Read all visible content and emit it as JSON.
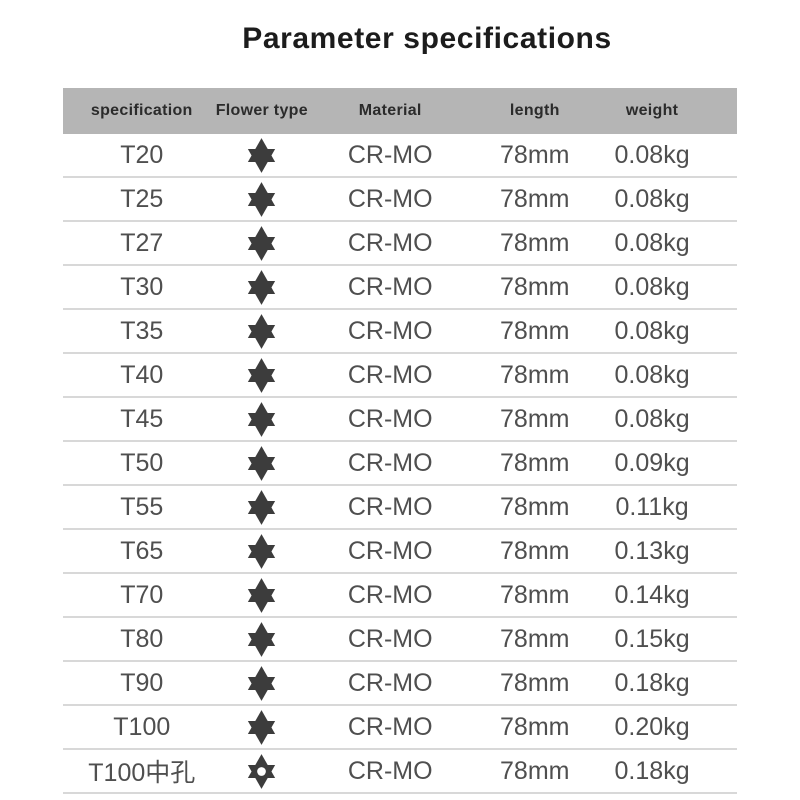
{
  "title": "Parameter specifications",
  "table": {
    "headers": [
      "specification",
      "Flower type",
      "Material",
      "length",
      "weight"
    ],
    "rows": [
      {
        "specification": "T20",
        "flower_type": "six-point-star",
        "material": "CR-MO",
        "length": "78mm",
        "weight": "0.08kg"
      },
      {
        "specification": "T25",
        "flower_type": "six-point-star",
        "material": "CR-MO",
        "length": "78mm",
        "weight": "0.08kg"
      },
      {
        "specification": "T27",
        "flower_type": "six-point-star",
        "material": "CR-MO",
        "length": "78mm",
        "weight": "0.08kg"
      },
      {
        "specification": "T30",
        "flower_type": "six-point-star",
        "material": "CR-MO",
        "length": "78mm",
        "weight": "0.08kg"
      },
      {
        "specification": "T35",
        "flower_type": "six-point-star",
        "material": "CR-MO",
        "length": "78mm",
        "weight": "0.08kg"
      },
      {
        "specification": "T40",
        "flower_type": "six-point-star",
        "material": "CR-MO",
        "length": "78mm",
        "weight": "0.08kg"
      },
      {
        "specification": "T45",
        "flower_type": "six-point-star",
        "material": "CR-MO",
        "length": "78mm",
        "weight": "0.08kg"
      },
      {
        "specification": "T50",
        "flower_type": "six-point-star",
        "material": "CR-MO",
        "length": "78mm",
        "weight": "0.09kg"
      },
      {
        "specification": "T55",
        "flower_type": "six-point-star",
        "material": "CR-MO",
        "length": "78mm",
        "weight": "0.11kg"
      },
      {
        "specification": "T65",
        "flower_type": "six-point-star",
        "material": "CR-MO",
        "length": "78mm",
        "weight": "0.13kg"
      },
      {
        "specification": "T70",
        "flower_type": "six-point-star",
        "material": "CR-MO",
        "length": "78mm",
        "weight": "0.14kg"
      },
      {
        "specification": "T80",
        "flower_type": "six-point-star",
        "material": "CR-MO",
        "length": "78mm",
        "weight": "0.15kg"
      },
      {
        "specification": "T90",
        "flower_type": "six-point-star",
        "material": "CR-MO",
        "length": "78mm",
        "weight": "0.18kg"
      },
      {
        "specification": "T100",
        "flower_type": "six-point-star",
        "material": "CR-MO",
        "length": "78mm",
        "weight": "0.20kg"
      },
      {
        "specification": "T100中孔",
        "flower_type": "six-point-star-hole",
        "material": "CR-MO",
        "length": "78mm",
        "weight": "0.18kg"
      }
    ]
  },
  "icons": {
    "six-point-star": "filled hexagram star",
    "six-point-star-hole": "hexagram star with center hole"
  },
  "colors": {
    "background": "#ffffff",
    "title_text": "#1c1c1c",
    "header_bg": "#b5b5b5",
    "header_text": "#2b2b2b",
    "body_text": "#4f4f4f",
    "star": "#3c3c3c",
    "star_hole": "#ffffff",
    "divider": "#d8d8d8"
  }
}
